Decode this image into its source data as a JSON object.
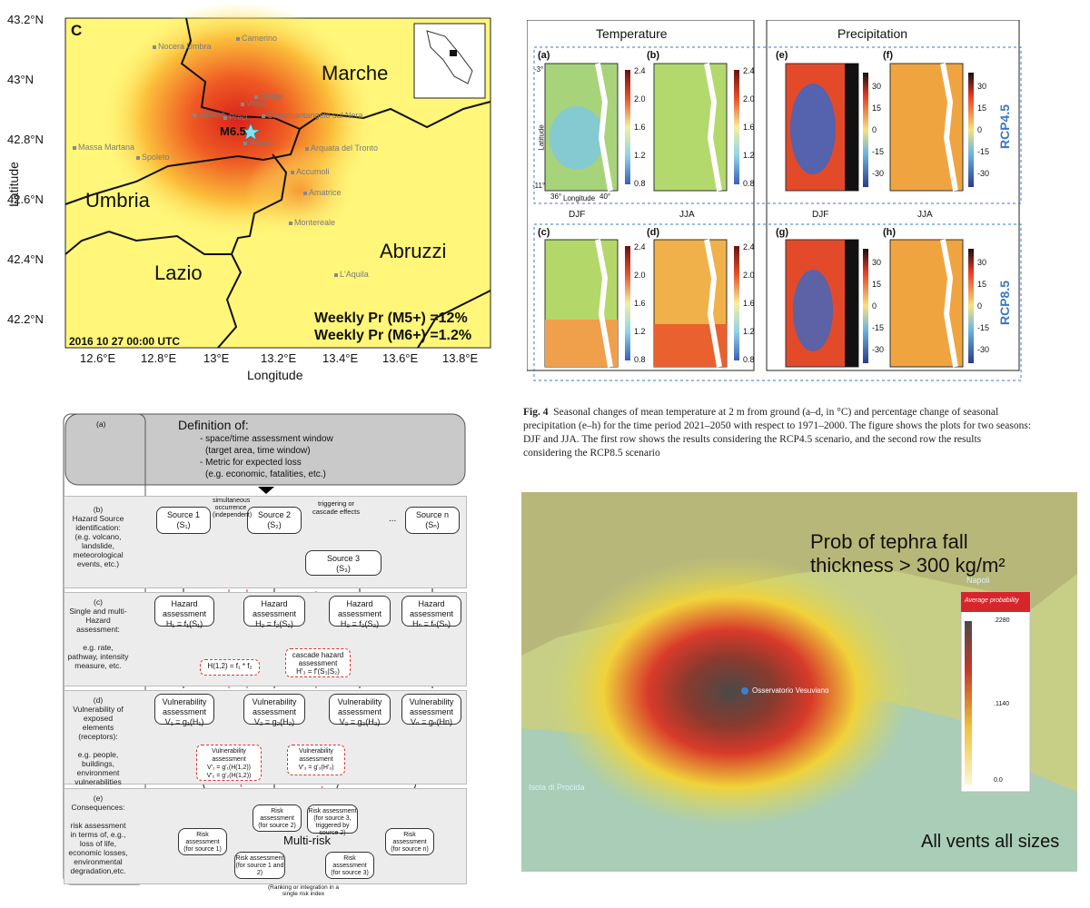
{
  "seismic_map": {
    "panel_letter": "C",
    "y_ticks": [
      "43.2°N",
      "43°N",
      "42.8°N",
      "42.6°N",
      "42.4°N",
      "42.2°N"
    ],
    "x_ticks": [
      "12.6°E",
      "12.8°E",
      "13°E",
      "13.2°E",
      "13.4°E",
      "13.6°E",
      "13.8°E"
    ],
    "xlabel": "Longitude",
    "ylabel": "Latitude",
    "regions": [
      "Marche",
      "Umbria",
      "Lazio",
      "Abruzzi"
    ],
    "towns": [
      "Nocera Umbra",
      "Camerino",
      "Ussita",
      "Visso",
      "Castelsantangelo sul Nera",
      "Sellano",
      "Preci",
      "Norcia",
      "Massa Martana",
      "Spoleto",
      "Arquata del Tronto",
      "Accumoli",
      "Amatrice",
      "Montereale",
      "L'Aquila"
    ],
    "event_label": "M6.5",
    "prob_m5": "Weekly Pr (M5+) =12%",
    "prob_m6": "Weekly Pr (M6+) =1.2%",
    "timestamp": "2016 10 27 00:00 UTC"
  },
  "climate_figure": {
    "group_titles": [
      "Temperature",
      "Precipitation"
    ],
    "panel_labels": [
      "(a)",
      "(b)",
      "(e)",
      "(f)",
      "(c)",
      "(d)",
      "(g)",
      "(h)"
    ],
    "seasons": [
      "DJF",
      "JJA",
      "DJF",
      "JJA"
    ],
    "scenarios": [
      "RCP4.5",
      "RCP8.5"
    ],
    "temp_colorbar": [
      "2.4",
      "2.0",
      "1.6",
      "1.2",
      "0.8"
    ],
    "precip_colorbar": [
      "30",
      "15",
      "0",
      "-15",
      "-30"
    ],
    "axis_text": {
      "lat": "Latitude",
      "lon": "Longitude",
      "lat_top": "-3°",
      "lat_bottom": "-11°",
      "lon_left": "36°",
      "lon_right": "40°"
    },
    "caption_lead": "Fig. 4",
    "caption_text": "Seasonal changes of mean temperature at 2 m from ground (a–d, in °C) and percentage change of seasonal precipitation (e–h) for the time period 2021–2050 with respect to 1971–2000. The figure shows the plots for two seasons: DJF and JJA. The first row shows the results considering the RCP4.5 scenario, and the second row the results considering the RCP8.5 scenario"
  },
  "flowchart": {
    "row_a": {
      "tag": "(a)",
      "title": "Definition of:",
      "lines": [
        "- space/time assessment window",
        "(target area, time window)",
        "- Metric for expected loss",
        "(e.g. economic, fatalities, etc.)"
      ]
    },
    "row_b": {
      "label": "(b)\nHazard Source identification:\n(e.g. volcano, landslide, meteorological events, etc.)",
      "sources": [
        "Source 1\n(S₁)",
        "Source 2\n(S₂)",
        "Source 3\n(S₃)",
        "Source n\n(Sₙ)"
      ],
      "note_sim": "simultaneous occurrence (independent)",
      "note_trig": "triggering or cascade effects"
    },
    "row_c": {
      "label": "(c)\nSingle and multi-Hazard assessment:\n\ne.g. rate, pathway, intensity measure, etc.",
      "boxes": [
        "Hazard assessment\nH₁ = f₁(S₁)",
        "Hazard assessment\nH₂ = f₂(S₂)",
        "Hazard assessment\nH₃ = f₃(S₃)",
        "Hazard assessment\nHₙ = fₙ(Sₙ)"
      ],
      "combo": "H(1,2) = f₁ * f₂",
      "cascade": "cascade hazard assessment\nH'₃ = f'(S₃|S₂)"
    },
    "row_d": {
      "label": "(d)\nVulnerability of exposed elements (receptors):\n\ne.g. people, buildings, environment vulnerabilities",
      "boxes": [
        "Vulnerability assessment\nV₁ = g₁(H₁)",
        "Vulnerability assessment\nV₂ = g₂(H₂)",
        "Vulnerability assessment\nV₃ = g₃(H₃)",
        "Vulnerability assessment\nVₙ = gₙ(Hn)"
      ],
      "vuln_combo": "Vulnerability assessment\nV'₁ = g'₁(H(1,2))\nV'₂ = g'₂(H(1,2))",
      "vuln_cascade": "Vulnerability assessment\nV'₃ = g'₃(H'₃)"
    },
    "row_e": {
      "label": "(e)\nConsequences:\n\nrisk assessment in terms of, e.g., loss of life, economic losses, environmental degradation,etc.",
      "multi_risk": "Multi-risk",
      "risks": [
        "Risk assessment\n(for source 1)",
        "Risk assessment\n(for source 2)",
        "Risk assessment\n(for source 3, triggered by source 2)",
        "Risk assessment\n(for source n)",
        "Risk assessment\n(for source 1 and 2)",
        "Risk assessment\n(for source 3)"
      ],
      "footer": "(Ranking or integration in a single risk index",
      "ellipsis": "..."
    }
  },
  "tephra_map": {
    "title_line1": "Prob of tephra fall",
    "title_line2": "thickness > 300 kg/m²",
    "legend_title": "Average probability",
    "legend_ticks": [
      ".2280",
      ".1140",
      "0.0"
    ],
    "places": [
      "Napoli",
      "Osservatorio Vesuviano",
      "Isola di Procida"
    ],
    "footer": "All vents all sizes",
    "colors": {
      "legend_header": "#d7262b",
      "high": "#3a3a3a",
      "mid": "#d83a2a",
      "low": "#f3e23a"
    }
  }
}
